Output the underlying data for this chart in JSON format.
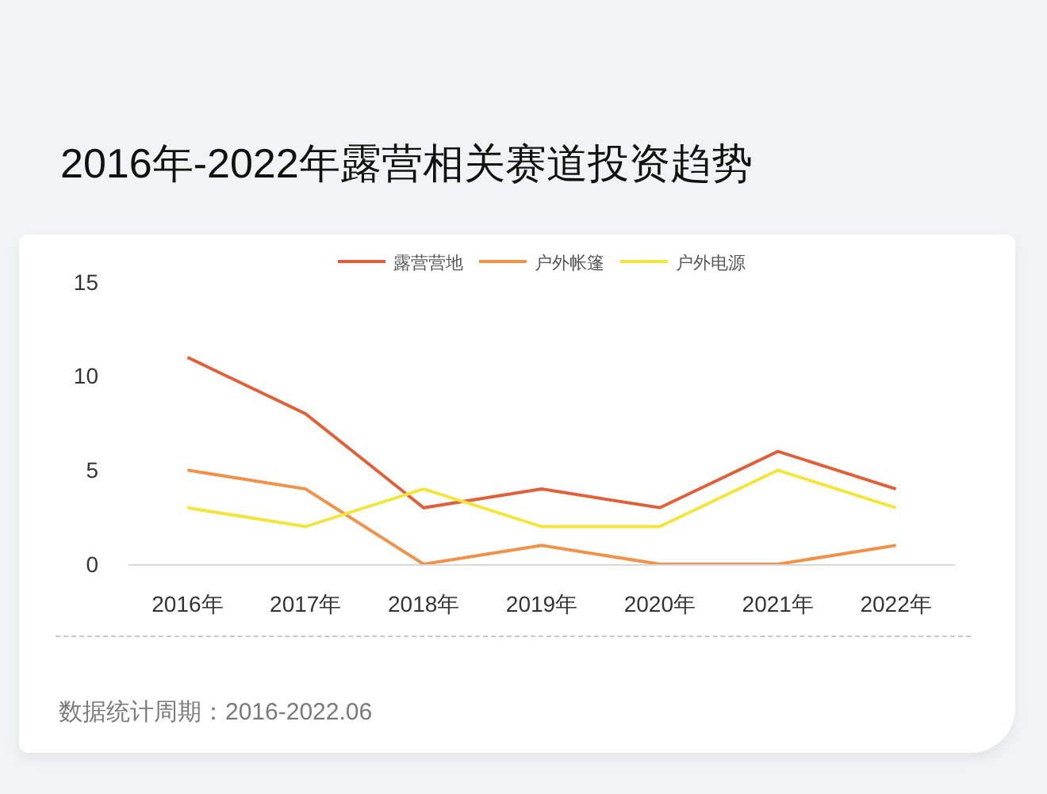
{
  "chart_data": {
    "type": "line",
    "title": "2016年-2022年露营相关赛道投资趋势",
    "categories": [
      "2016年",
      "2017年",
      "2018年",
      "2019年",
      "2020年",
      "2021年",
      "2022年"
    ],
    "series": [
      {
        "name": "露营营地",
        "color": "#e0603a",
        "values": [
          11,
          8,
          3,
          4,
          3,
          6,
          4
        ]
      },
      {
        "name": "户外帐篷",
        "color": "#f0924a",
        "values": [
          5,
          4,
          0,
          1,
          0,
          0,
          1
        ]
      },
      {
        "name": "户外电源",
        "color": "#f2e63c",
        "values": [
          3,
          2,
          4,
          2,
          2,
          5,
          3
        ]
      }
    ],
    "ylim": [
      0,
      15
    ],
    "yticks": [
      0,
      5,
      10,
      15
    ],
    "grid": false,
    "legend": "top",
    "line_style": "solid",
    "annotations": [
      "数据统计周期：2016-2022.06"
    ]
  }
}
